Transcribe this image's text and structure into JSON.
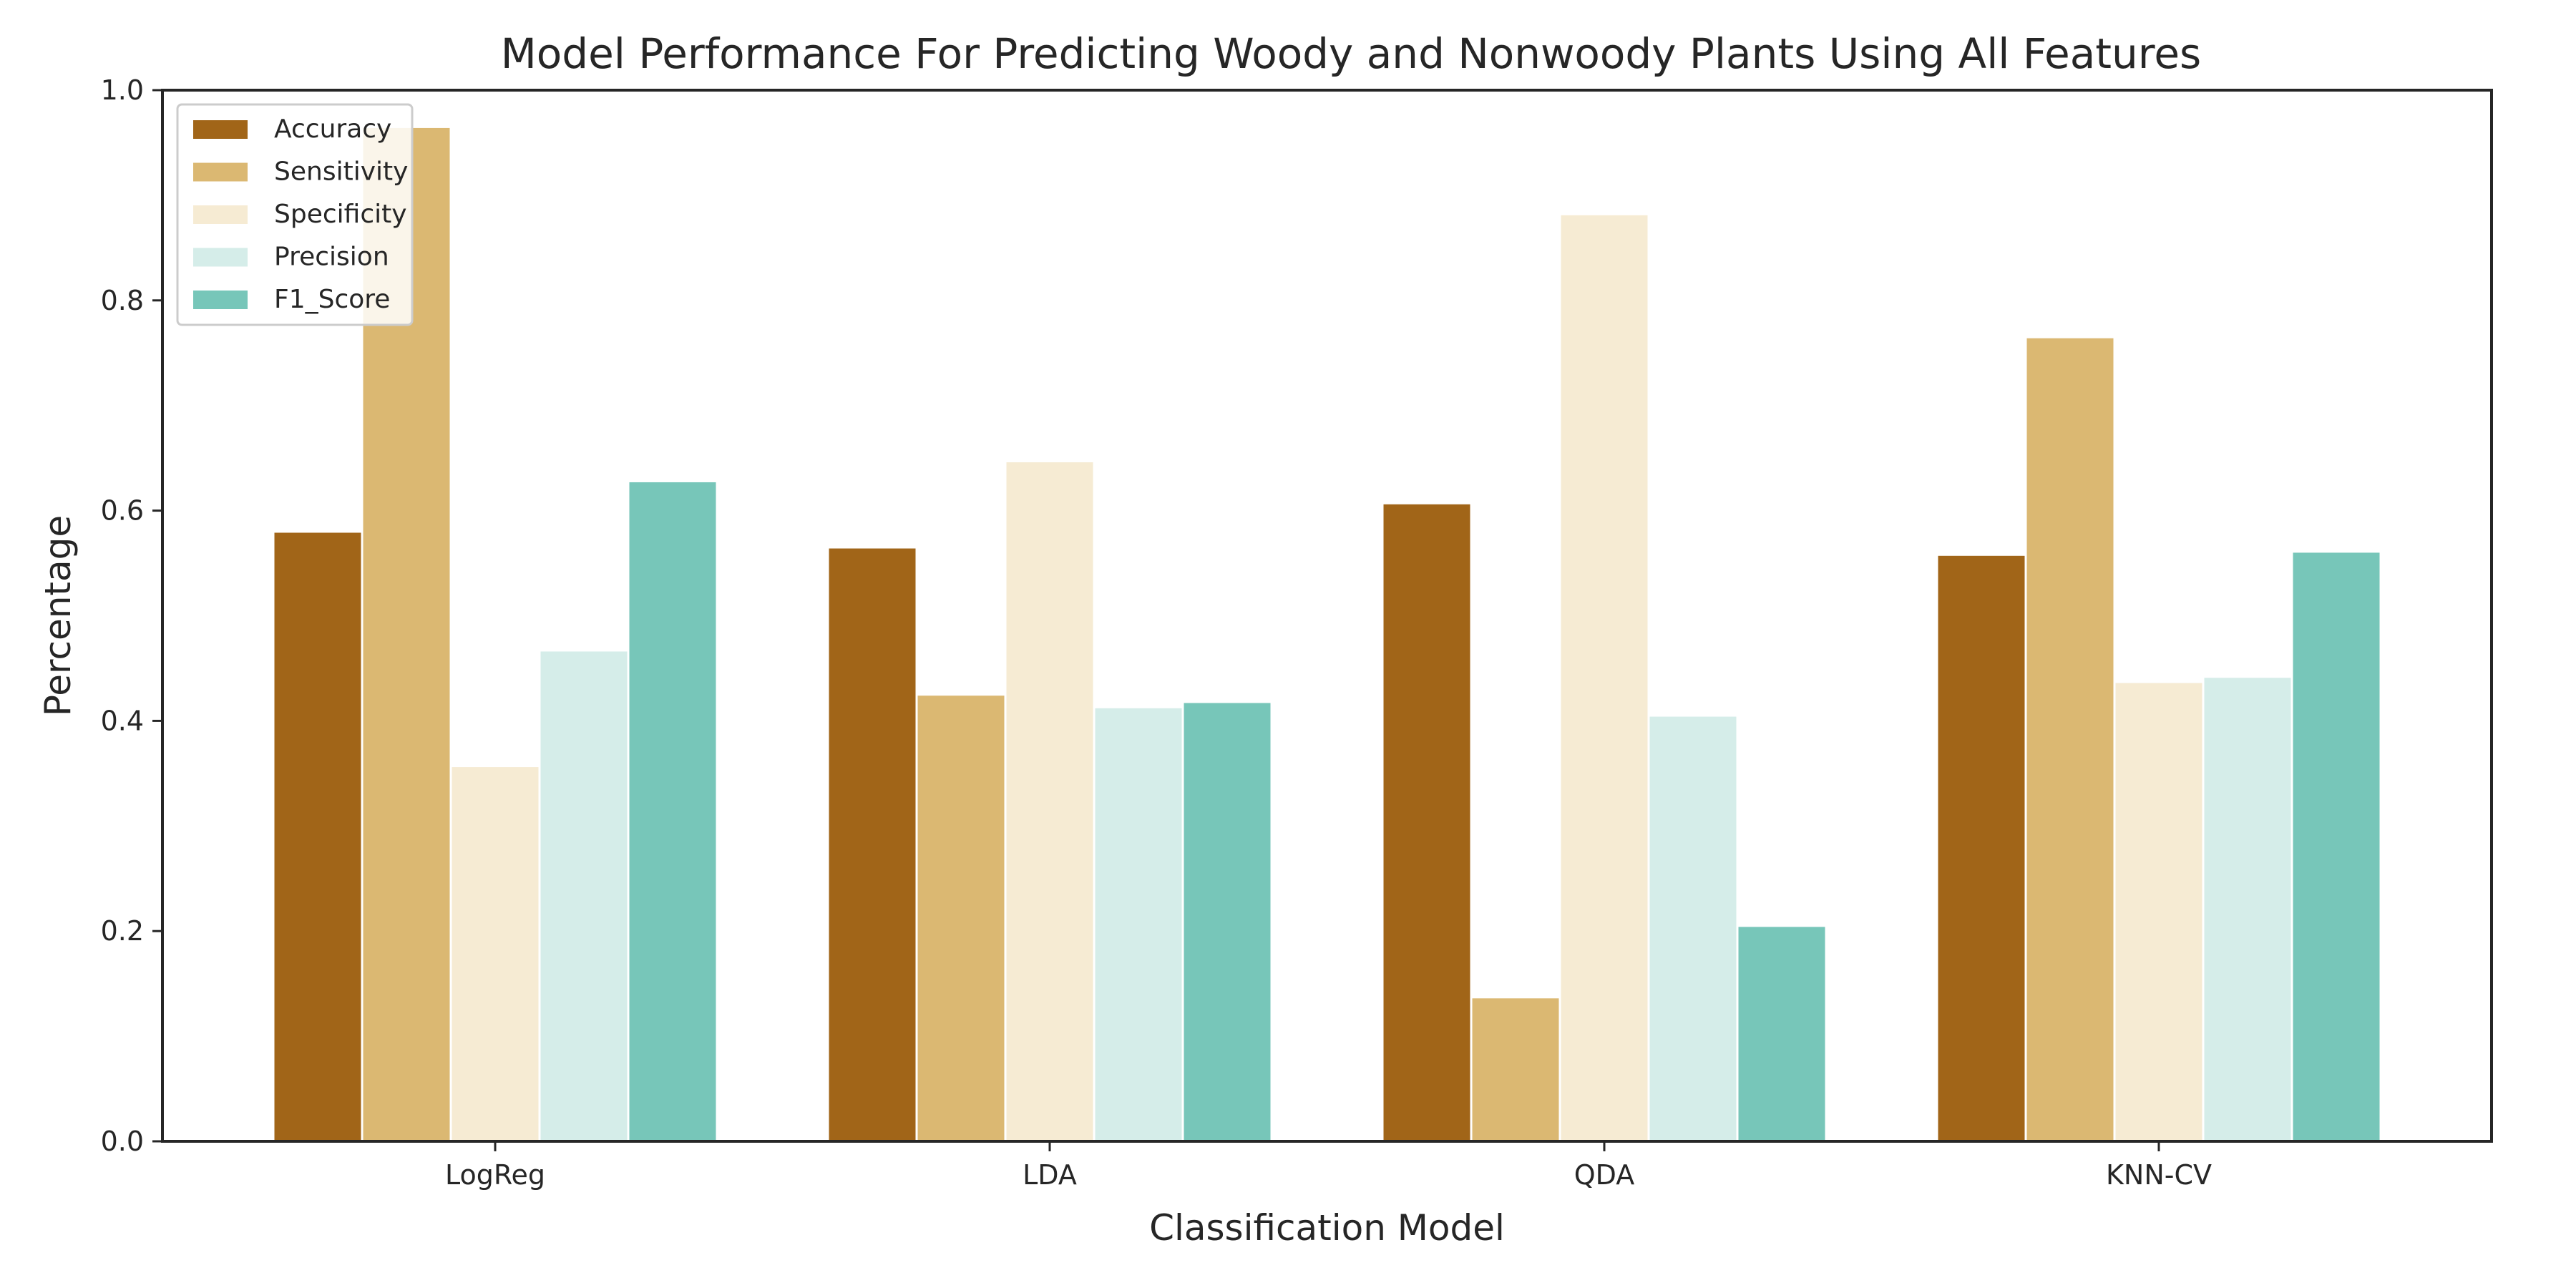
{
  "chart_data": {
    "type": "bar",
    "title": "Model Performance For Predicting Woody and Nonwoody Plants Using All Features",
    "xlabel": "Classification Model",
    "ylabel": "Percentage",
    "ylim": [
      0,
      1.0
    ],
    "yticks": [
      "0.0",
      "0.2",
      "0.4",
      "0.6",
      "0.8",
      "1.0"
    ],
    "categories": [
      "LogReg",
      "LDA",
      "QDA",
      "KNN-CV"
    ],
    "grid": false,
    "legend_position": "top-left",
    "series": [
      {
        "name": "Accuracy",
        "color": "#a16518",
        "values": [
          0.58,
          0.565,
          0.607,
          0.558
        ]
      },
      {
        "name": "Sensitivity",
        "color": "#dbb872",
        "values": [
          0.965,
          0.425,
          0.137,
          0.765
        ]
      },
      {
        "name": "Specificity",
        "color": "#f6ebd3",
        "values": [
          0.357,
          0.647,
          0.882,
          0.437
        ]
      },
      {
        "name": "Precision",
        "color": "#d5ede9",
        "values": [
          0.467,
          0.413,
          0.405,
          0.442
        ]
      },
      {
        "name": "F1_Score",
        "color": "#77c6b9",
        "values": [
          0.628,
          0.418,
          0.205,
          0.561
        ]
      }
    ]
  }
}
